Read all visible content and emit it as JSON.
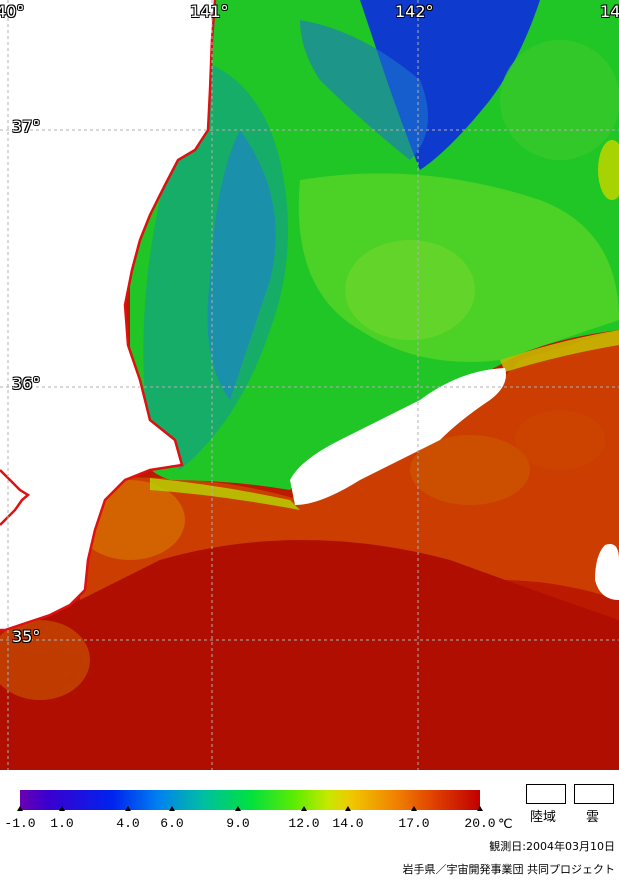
{
  "map": {
    "lon_labels": [
      "40°",
      "141°",
      "142°",
      "14"
    ],
    "lat_labels": [
      "37°",
      "36°",
      "35°"
    ]
  },
  "legend": {
    "ticks": [
      "-1.0",
      "1.0",
      "4.0",
      "6.0",
      "9.0",
      "12.0",
      "14.0",
      "17.0",
      "20.0"
    ],
    "unit": "℃",
    "land_label": "陸域",
    "cloud_label": "雲",
    "observation_date": "観測日:2004年03月10日",
    "credit": "岩手県／宇宙開発事業団 共同プロジェクト"
  },
  "colors": {
    "coast": "#e01010",
    "land": "#ffffff",
    "grid": "#b0b0b0"
  }
}
